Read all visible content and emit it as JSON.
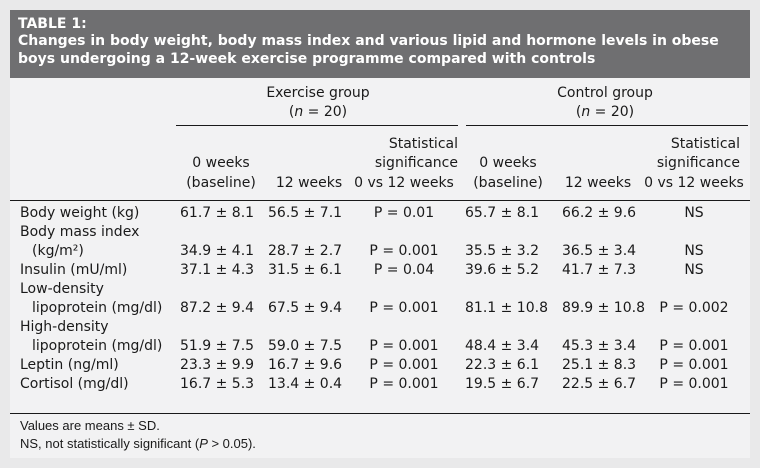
{
  "table": {
    "label": "TABLE 1:",
    "title_line1": "Changes in body weight, body mass index and various lipid and hormone levels in obese",
    "title_line2": "boys undergoing a 12-week exercise programme compared with controls",
    "groups": [
      {
        "name": "Exercise group",
        "n_prefix": "(",
        "n_var": "n",
        "n_suffix": " = 20)"
      },
      {
        "name": "Control group",
        "n_prefix": "(",
        "n_var": "n",
        "n_suffix": " = 20)"
      }
    ],
    "subheaders": {
      "baseline_line1": "0 weeks",
      "baseline_line2": "(baseline)",
      "twelve_weeks": "12 weeks",
      "stat_line1": "Statistical",
      "stat_line2": "significance",
      "stat_line3": "0 vs 12 weeks"
    },
    "rows": [
      {
        "label": [
          "Body weight (kg)"
        ],
        "cells": [
          "61.7 ± 8.1",
          "56.5 ± 7.1",
          "P = 0.01",
          "65.7 ± 8.1",
          "66.2 ± 9.6",
          "NS"
        ]
      },
      {
        "label": [
          "Body mass index",
          "(kg/m²)"
        ],
        "cells": [
          "34.9 ± 4.1",
          "28.7 ± 2.7",
          "P = 0.001",
          "35.5 ± 3.2",
          "36.5 ± 3.4",
          "NS"
        ]
      },
      {
        "label": [
          "Insulin (mU/ml)"
        ],
        "cells": [
          "37.1 ± 4.3",
          "31.5 ± 6.1",
          "P = 0.04",
          "39.6 ± 5.2",
          "41.7 ± 7.3",
          "NS"
        ]
      },
      {
        "label": [
          "Low-density",
          "lipoprotein (mg/dl)"
        ],
        "cells": [
          "87.2 ± 9.4",
          "67.5 ± 9.4",
          "P = 0.001",
          "81.1 ± 10.8",
          "89.9 ± 10.8",
          "P = 0.002"
        ]
      },
      {
        "label": [
          "High-density",
          "lipoprotein (mg/dl)"
        ],
        "cells": [
          "51.9 ± 7.5",
          "59.0 ± 7.5",
          "P = 0.001",
          "48.4 ± 3.4",
          "45.3 ± 3.4",
          "P = 0.001"
        ]
      },
      {
        "label": [
          "Leptin (ng/ml)"
        ],
        "cells": [
          "23.3 ± 9.9",
          "16.7 ± 9.6",
          "P = 0.001",
          "22.3 ± 6.1",
          "25.1 ± 8.3",
          "P = 0.001"
        ]
      },
      {
        "label": [
          "Cortisol (mg/dl)"
        ],
        "cells": [
          "16.7 ± 5.3",
          "13.4 ± 0.4",
          "P = 0.001",
          "19.5 ± 6.7",
          "22.5 ± 6.7",
          "P = 0.001"
        ]
      }
    ],
    "footnotes": {
      "line1": "Values are means ± SD.",
      "line2_prefix": "NS, not statistically significant (",
      "line2_var": "P",
      "line2_suffix": " > 0.05)."
    }
  },
  "colors": {
    "header_bg": "#6f6f71",
    "page_bg": "#e9e9ea",
    "table_bg": "#f2f2f3"
  }
}
